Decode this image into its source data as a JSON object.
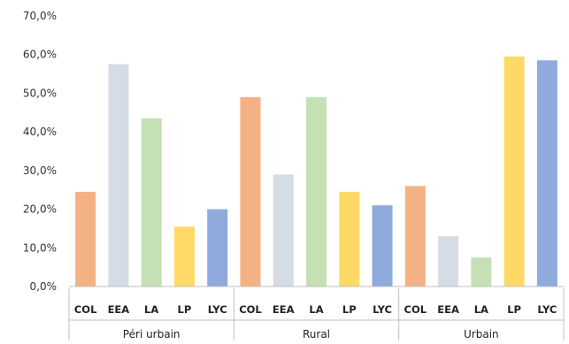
{
  "chart_data": {
    "type": "bar",
    "title": "",
    "xlabel": "",
    "ylabel": "",
    "ylim": [
      0,
      70
    ],
    "y_ticks": [
      "0,0%",
      "10,0%",
      "20,0%",
      "30,0%",
      "40,0%",
      "50,0%",
      "60,0%",
      "70,0%"
    ],
    "grid": false,
    "legend": "none",
    "subcategories": [
      "COL",
      "EEA",
      "LA",
      "LP",
      "LYC"
    ],
    "colors": {
      "COL": "#F4B183",
      "EEA": "#D6DCE5",
      "LA": "#C5E0B4",
      "LP": "#FFD966",
      "LYC": "#8FAADC"
    },
    "groups": [
      {
        "name": "Péri urbain",
        "values": [
          24.5,
          57.5,
          43.5,
          15.5,
          20.0
        ]
      },
      {
        "name": "Rural",
        "values": [
          49.0,
          29.0,
          49.0,
          24.5,
          21.0
        ]
      },
      {
        "name": "Urbain",
        "values": [
          26.0,
          13.0,
          7.5,
          59.5,
          58.5
        ]
      }
    ]
  }
}
